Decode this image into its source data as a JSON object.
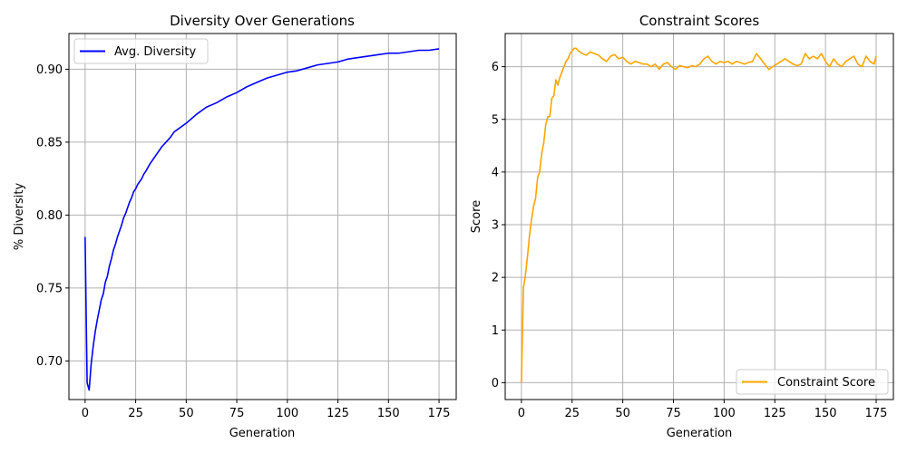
{
  "figure": {
    "background": "#ffffff"
  },
  "chart_data": [
    {
      "type": "line",
      "title": "Diversity Over Generations",
      "xlabel": "Generation",
      "ylabel": "% Diversity",
      "xlim": [
        -8,
        183.5
      ],
      "ylim": [
        0.6735,
        0.9245
      ],
      "xticks": [
        0,
        25,
        50,
        75,
        100,
        125,
        150,
        175
      ],
      "xtick_labels": [
        "0",
        "25",
        "50",
        "75",
        "100",
        "125",
        "150",
        "175"
      ],
      "yticks": [
        0.7,
        0.75,
        0.8,
        0.85,
        0.9
      ],
      "ytick_labels": [
        "0.70",
        "0.75",
        "0.80",
        "0.85",
        "0.90"
      ],
      "grid": true,
      "legend": {
        "position": "top-left",
        "entries": [
          "Avg. Diversity"
        ]
      },
      "series": [
        {
          "name": "Avg. Diversity",
          "color": "#0000ff",
          "x": [
            0,
            1,
            2,
            3,
            4,
            5,
            6,
            7,
            8,
            9,
            10,
            11,
            12,
            13,
            14,
            15,
            16,
            17,
            18,
            19,
            20,
            21,
            22,
            23,
            24,
            25,
            26,
            27,
            28,
            29,
            30,
            32,
            34,
            36,
            38,
            40,
            42,
            44,
            46,
            48,
            50,
            55,
            60,
            65,
            70,
            75,
            80,
            85,
            90,
            95,
            100,
            105,
            110,
            115,
            120,
            125,
            130,
            135,
            140,
            145,
            150,
            155,
            160,
            165,
            170,
            175
          ],
          "y": [
            0.785,
            0.685,
            0.68,
            0.698,
            0.71,
            0.72,
            0.728,
            0.735,
            0.742,
            0.746,
            0.754,
            0.758,
            0.765,
            0.77,
            0.776,
            0.78,
            0.785,
            0.789,
            0.793,
            0.798,
            0.801,
            0.805,
            0.809,
            0.812,
            0.816,
            0.818,
            0.821,
            0.823,
            0.825,
            0.828,
            0.83,
            0.835,
            0.839,
            0.843,
            0.847,
            0.85,
            0.853,
            0.857,
            0.859,
            0.861,
            0.863,
            0.869,
            0.874,
            0.877,
            0.881,
            0.884,
            0.888,
            0.891,
            0.894,
            0.896,
            0.898,
            0.899,
            0.901,
            0.903,
            0.904,
            0.905,
            0.907,
            0.908,
            0.909,
            0.91,
            0.911,
            0.911,
            0.912,
            0.913,
            0.913,
            0.914
          ]
        }
      ]
    },
    {
      "type": "line",
      "title": "Constraint Scores",
      "xlabel": "Generation",
      "ylabel": "Score",
      "xlim": [
        -8,
        183.5
      ],
      "ylim": [
        -0.32,
        6.63
      ],
      "xticks": [
        0,
        25,
        50,
        75,
        100,
        125,
        150,
        175
      ],
      "xtick_labels": [
        "0",
        "25",
        "50",
        "75",
        "100",
        "125",
        "150",
        "175"
      ],
      "yticks": [
        0,
        1,
        2,
        3,
        4,
        5,
        6
      ],
      "ytick_labels": [
        "0",
        "1",
        "2",
        "3",
        "4",
        "5",
        "6"
      ],
      "grid": true,
      "legend": {
        "position": "bottom-right",
        "entries": [
          "Constraint Score"
        ]
      },
      "series": [
        {
          "name": "Constraint Score",
          "color": "#ffa500",
          "x": [
            0,
            1,
            2,
            3,
            4,
            5,
            6,
            7,
            8,
            9,
            10,
            11,
            12,
            13,
            14,
            15,
            16,
            17,
            18,
            19,
            20,
            21,
            22,
            23,
            24,
            25,
            26,
            27,
            28,
            29,
            30,
            32,
            34,
            36,
            38,
            40,
            42,
            44,
            46,
            48,
            50,
            52,
            54,
            56,
            58,
            60,
            62,
            64,
            66,
            68,
            70,
            72,
            74,
            76,
            78,
            80,
            82,
            84,
            86,
            88,
            90,
            92,
            94,
            96,
            98,
            100,
            102,
            104,
            106,
            108,
            110,
            112,
            114,
            116,
            118,
            120,
            122,
            124,
            126,
            128,
            130,
            132,
            134,
            136,
            138,
            140,
            142,
            144,
            146,
            148,
            150,
            152,
            154,
            156,
            158,
            160,
            162,
            164,
            166,
            168,
            170,
            172,
            174,
            175
          ],
          "y": [
            0.0,
            1.8,
            2.05,
            2.4,
            2.8,
            3.1,
            3.35,
            3.5,
            3.9,
            4.0,
            4.35,
            4.55,
            4.9,
            5.05,
            5.05,
            5.4,
            5.45,
            5.75,
            5.65,
            5.8,
            5.9,
            6.0,
            6.1,
            6.15,
            6.25,
            6.3,
            6.35,
            6.35,
            6.3,
            6.28,
            6.25,
            6.22,
            6.28,
            6.25,
            6.22,
            6.15,
            6.1,
            6.2,
            6.23,
            6.15,
            6.18,
            6.1,
            6.05,
            6.1,
            6.08,
            6.05,
            6.05,
            6.0,
            6.05,
            5.95,
            6.05,
            6.08,
            6.0,
            5.95,
            6.02,
            6.0,
            5.98,
            6.02,
            6.0,
            6.05,
            6.15,
            6.2,
            6.1,
            6.05,
            6.1,
            6.08,
            6.1,
            6.05,
            6.1,
            6.08,
            6.05,
            6.08,
            6.1,
            6.25,
            6.15,
            6.05,
            5.95,
            6.0,
            6.05,
            6.1,
            6.15,
            6.1,
            6.05,
            6.02,
            6.05,
            6.25,
            6.15,
            6.2,
            6.15,
            6.25,
            6.1,
            6.0,
            6.15,
            6.05,
            6.0,
            6.1,
            6.15,
            6.2,
            6.05,
            6.0,
            6.2,
            6.1,
            6.05,
            6.2
          ]
        }
      ]
    }
  ]
}
